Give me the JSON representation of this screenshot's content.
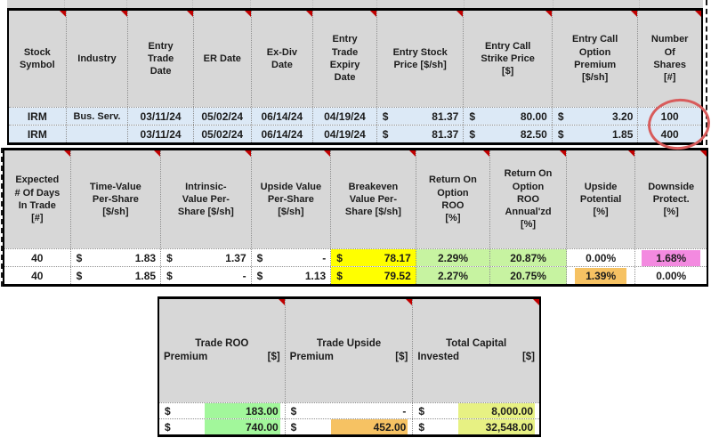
{
  "colors": {
    "header_gray": "#d7d7d7",
    "row_blue": "#dce9f6",
    "yellow": "#ffff00",
    "green": "#c7f3a1",
    "bright_green": "#a2f79b",
    "yellow_green": "#e7f183",
    "orange": "#f6c263",
    "pink": "#f38ae0",
    "triangle_red": "#c00000",
    "ellipse_red": "#d85c5c"
  },
  "tables": {
    "trade_entry": {
      "headers": [
        "Stock\nSymbol",
        "Industry",
        "Entry\nTrade\nDate",
        "ER Date",
        "Ex-Div\nDate",
        "Entry\nTrade\nExpiry\nDate",
        "Entry Stock\nPrice  [$/sh]",
        "Entry  Call\nStrike Price\n[$]",
        "Entry  Call\nOption\nPremium\n[$/sh]",
        "Number\nOf\nShares\n[#]"
      ],
      "rows": [
        [
          {
            "t": "IRM"
          },
          {
            "t": "Bus. Serv."
          },
          {
            "t": "03/11/24"
          },
          {
            "t": "05/02/24"
          },
          {
            "t": "06/14/24"
          },
          {
            "t": "04/19/24"
          },
          {
            "cur": "$",
            "val": "81.37"
          },
          {
            "cur": "$",
            "val": "80.00"
          },
          {
            "cur": "$",
            "val": "3.20"
          },
          {
            "t": "100"
          }
        ],
        [
          {
            "t": "IRM"
          },
          {
            "t": ""
          },
          {
            "t": "03/11/24"
          },
          {
            "t": "05/02/24"
          },
          {
            "t": "06/14/24"
          },
          {
            "t": "04/19/24"
          },
          {
            "cur": "$",
            "val": "81.37"
          },
          {
            "cur": "$",
            "val": "82.50"
          },
          {
            "cur": "$",
            "val": "1.85"
          },
          {
            "t": "400"
          }
        ]
      ]
    },
    "trade_metrics": {
      "headers": [
        "Expected\n# Of  Days\nIn Trade\n[#]",
        "Time-Value\nPer-Share\n[$/sh]",
        "Intrinsic-\nValue   Per-\nShare [$/sh]",
        "Upside Value\nPer-Share\n[$/sh]",
        "Breakeven\nValue Per-\nShare  [$/sh]",
        "Return  On\nOption\nROO\n[%]",
        "Return  On\nOption\nROO\nAnnual'zd\n[%]",
        "Upside\nPotential\n[%]",
        "Downside\nProtect.\n[%]"
      ],
      "rows": [
        [
          {
            "t": "40"
          },
          {
            "cur": "$",
            "val": "1.83"
          },
          {
            "cur": "$",
            "val": "1.37"
          },
          {
            "cur": "$",
            "val": "-"
          },
          {
            "cur": "$",
            "val": "78.17"
          },
          {
            "t": "2.29%"
          },
          {
            "t": "20.87%"
          },
          {
            "t": "0.00%"
          },
          {
            "t": "1.68%"
          }
        ],
        [
          {
            "t": "40"
          },
          {
            "cur": "$",
            "val": "1.85"
          },
          {
            "cur": "$",
            "val": "-"
          },
          {
            "cur": "$",
            "val": "1.13"
          },
          {
            "cur": "$",
            "val": "79.52"
          },
          {
            "t": "2.27%"
          },
          {
            "t": "20.75%"
          },
          {
            "t": "1.39%"
          },
          {
            "t": "0.00%"
          }
        ]
      ]
    },
    "trade_totals": {
      "headers": [
        {
          "line1": "Trade ROO",
          "left": "Premium",
          "right": "[$]"
        },
        {
          "line1": "Trade Upside",
          "left": "Premium",
          "right": "[$]"
        },
        {
          "line1": "Total Capital",
          "left": "Invested",
          "right": "[$]"
        }
      ],
      "rows": [
        [
          {
            "cur": "$",
            "val": "183.00"
          },
          {
            "cur": "$",
            "val": "-"
          },
          {
            "cur": "$",
            "val": "8,000.00"
          }
        ],
        [
          {
            "cur": "$",
            "val": "740.00"
          },
          {
            "cur": "$",
            "val": "452.00"
          },
          {
            "cur": "$",
            "val": "32,548.00"
          }
        ]
      ]
    }
  }
}
